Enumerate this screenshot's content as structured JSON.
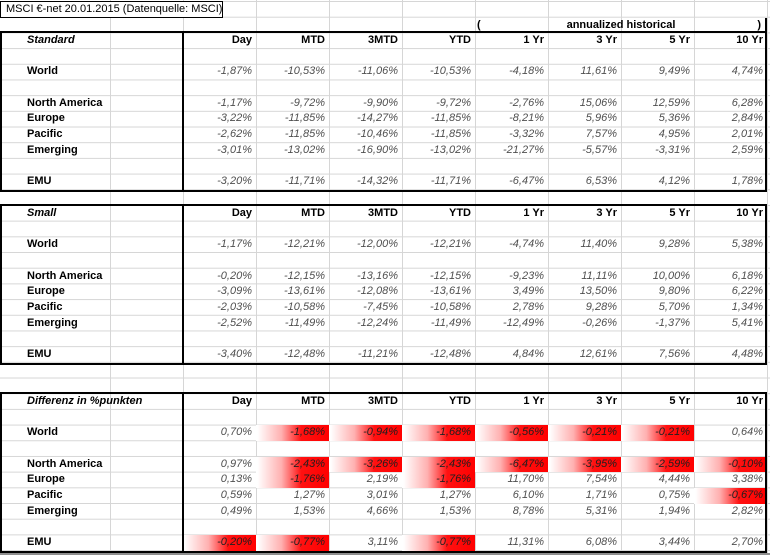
{
  "sheet": {
    "title": "MSCI €-net 20.01.2015 (Datenquelle: MSCI)",
    "annualized": {
      "open_paren": "(",
      "label": "annualized historical",
      "close_paren": ")"
    },
    "columns": [
      "Day",
      "MTD",
      "3MTD",
      "YTD",
      "1 Yr",
      "3 Yr",
      "5 Yr",
      "10 Yr"
    ]
  },
  "colors": {
    "negative_highlight": "#ff0000",
    "value_text": "#4f4f4f",
    "gridline": "#d6d6d6",
    "table_border": "#000000"
  },
  "tables": [
    {
      "title": "Standard",
      "highlight_negatives": false,
      "rows": [
        {
          "label": "World",
          "values": [
            "-1,87%",
            "-10,53%",
            "-11,06%",
            "-10,53%",
            "-4,18%",
            "11,61%",
            "9,49%",
            "4,74%"
          ]
        },
        {
          "label": "North America",
          "values": [
            "-1,17%",
            "-9,72%",
            "-9,90%",
            "-9,72%",
            "-2,76%",
            "15,06%",
            "12,59%",
            "6,28%"
          ]
        },
        {
          "label": "Europe",
          "values": [
            "-3,22%",
            "-11,85%",
            "-14,27%",
            "-11,85%",
            "-8,21%",
            "5,96%",
            "5,36%",
            "2,84%"
          ]
        },
        {
          "label": "Pacific",
          "values": [
            "-2,62%",
            "-11,85%",
            "-10,46%",
            "-11,85%",
            "-3,32%",
            "7,57%",
            "4,95%",
            "2,01%"
          ]
        },
        {
          "label": "Emerging",
          "values": [
            "-3,01%",
            "-13,02%",
            "-16,90%",
            "-13,02%",
            "-21,27%",
            "-5,57%",
            "-3,31%",
            "2,59%"
          ]
        },
        {
          "label": "EMU",
          "values": [
            "-3,20%",
            "-11,71%",
            "-14,32%",
            "-11,71%",
            "-6,47%",
            "6,53%",
            "4,12%",
            "1,78%"
          ]
        }
      ]
    },
    {
      "title": "Small",
      "highlight_negatives": false,
      "rows": [
        {
          "label": "World",
          "values": [
            "-1,17%",
            "-12,21%",
            "-12,00%",
            "-12,21%",
            "-4,74%",
            "11,40%",
            "9,28%",
            "5,38%"
          ]
        },
        {
          "label": "North America",
          "values": [
            "-0,20%",
            "-12,15%",
            "-13,16%",
            "-12,15%",
            "-9,23%",
            "11,11%",
            "10,00%",
            "6,18%"
          ]
        },
        {
          "label": "Europe",
          "values": [
            "-3,09%",
            "-13,61%",
            "-12,08%",
            "-13,61%",
            "3,49%",
            "13,50%",
            "9,80%",
            "6,22%"
          ]
        },
        {
          "label": "Pacific",
          "values": [
            "-2,03%",
            "-10,58%",
            "-7,45%",
            "-10,58%",
            "2,78%",
            "9,28%",
            "5,70%",
            "1,34%"
          ]
        },
        {
          "label": "Emerging",
          "values": [
            "-2,52%",
            "-11,49%",
            "-12,24%",
            "-11,49%",
            "-12,49%",
            "-0,26%",
            "-1,37%",
            "5,41%"
          ]
        },
        {
          "label": "EMU",
          "values": [
            "-3,40%",
            "-12,48%",
            "-11,21%",
            "-12,48%",
            "4,84%",
            "12,61%",
            "7,56%",
            "4,48%"
          ]
        }
      ]
    },
    {
      "title": "Differenz in %punkten",
      "highlight_negatives": true,
      "rows": [
        {
          "label": "World",
          "values": [
            "0,70%",
            "-1,68%",
            "-0,94%",
            "-1,68%",
            "-0,56%",
            "-0,21%",
            "-0,21%",
            "0,64%"
          ]
        },
        {
          "label": "North America",
          "values": [
            "0,97%",
            "-2,43%",
            "-3,26%",
            "-2,43%",
            "-6,47%",
            "-3,95%",
            "-2,59%",
            "-0,10%"
          ]
        },
        {
          "label": "Europe",
          "values": [
            "0,13%",
            "-1,76%",
            "2,19%",
            "-1,76%",
            "11,70%",
            "7,54%",
            "4,44%",
            "3,38%"
          ]
        },
        {
          "label": "Pacific",
          "values": [
            "0,59%",
            "1,27%",
            "3,01%",
            "1,27%",
            "6,10%",
            "1,71%",
            "0,75%",
            "-0,67%"
          ]
        },
        {
          "label": "Emerging",
          "values": [
            "0,49%",
            "1,53%",
            "4,66%",
            "1,53%",
            "8,78%",
            "5,31%",
            "1,94%",
            "2,82%"
          ]
        },
        {
          "label": "EMU",
          "values": [
            "-0,20%",
            "-0,77%",
            "3,11%",
            "-0,77%",
            "11,31%",
            "6,08%",
            "3,44%",
            "2,70%"
          ]
        }
      ]
    }
  ]
}
